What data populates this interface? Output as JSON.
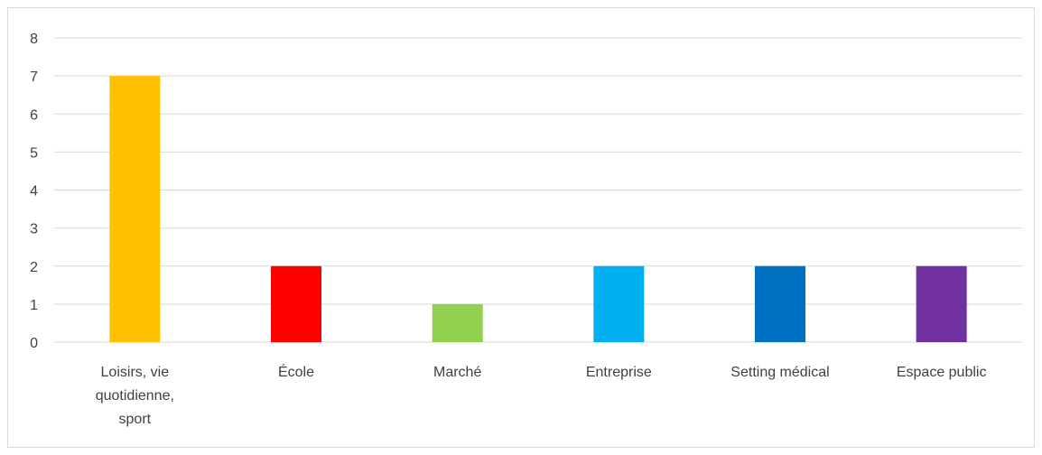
{
  "chart_data": {
    "type": "bar",
    "categories": [
      "Loisirs, vie quotidienne, sport",
      "École",
      "Marché",
      "Entreprise",
      "Setting médical",
      "Espace public"
    ],
    "category_lines": [
      [
        "Loisirs, vie",
        "quotidienne,",
        "sport"
      ],
      [
        "École"
      ],
      [
        "Marché"
      ],
      [
        "Entreprise"
      ],
      [
        "Setting médical"
      ],
      [
        "Espace public"
      ]
    ],
    "values": [
      7,
      2,
      1,
      2,
      2,
      2
    ],
    "colors": [
      "#FFC000",
      "#FF0000",
      "#92D050",
      "#00B0F0",
      "#0070C0",
      "#7030A0"
    ],
    "yticks": [
      "0",
      "1",
      "2",
      "3",
      "4",
      "5",
      "6",
      "7",
      "8"
    ],
    "ylim": [
      0,
      8
    ],
    "grid": true,
    "title": "",
    "xlabel": "",
    "ylabel": ""
  }
}
